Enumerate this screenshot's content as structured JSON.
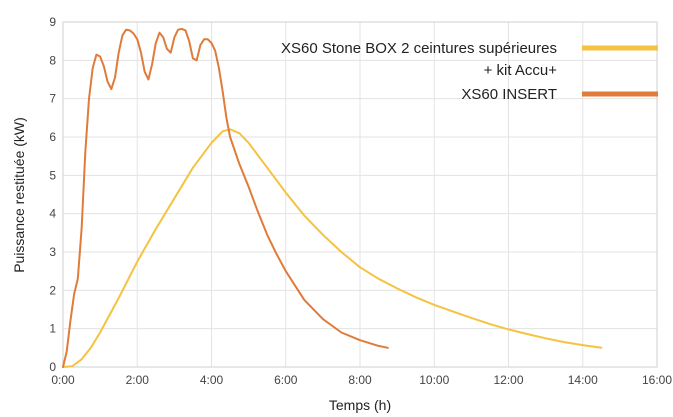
{
  "chart_data": {
    "type": "line",
    "title": "",
    "xlabel": "Temps (h)",
    "ylabel": "Puissance restituée  (kW)",
    "x_unit": "hours",
    "xlim": [
      0,
      16
    ],
    "ylim": [
      0,
      9
    ],
    "x_ticks": [
      {
        "value": 0,
        "label": "0:00"
      },
      {
        "value": 2,
        "label": "2:00"
      },
      {
        "value": 4,
        "label": "4:00"
      },
      {
        "value": 6,
        "label": "6:00"
      },
      {
        "value": 8,
        "label": "8:00"
      },
      {
        "value": 10,
        "label": "10:00"
      },
      {
        "value": 12,
        "label": "12:00"
      },
      {
        "value": 14,
        "label": "14:00"
      },
      {
        "value": 16,
        "label": "16:00"
      }
    ],
    "y_ticks": [
      {
        "value": 0,
        "label": "0"
      },
      {
        "value": 1,
        "label": "1"
      },
      {
        "value": 2,
        "label": "2"
      },
      {
        "value": 3,
        "label": "3"
      },
      {
        "value": 4,
        "label": "4"
      },
      {
        "value": 5,
        "label": "5"
      },
      {
        "value": 6,
        "label": "6"
      },
      {
        "value": 7,
        "label": "7"
      },
      {
        "value": 8,
        "label": "8"
      },
      {
        "value": 9,
        "label": "9"
      }
    ],
    "grid": true,
    "legend_position": "top-right",
    "series": [
      {
        "name": "XS60 Stone BOX 2 ceintures supérieures + kit Accu+",
        "legend_lines": [
          "XS60 Stone BOX 2 ceintures supérieures",
          "+ kit Accu+"
        ],
        "color": "#f5c242",
        "points": [
          [
            0,
            0
          ],
          [
            0.25,
            0.02
          ],
          [
            0.5,
            0.2
          ],
          [
            0.75,
            0.5
          ],
          [
            1.0,
            0.9
          ],
          [
            1.5,
            1.8
          ],
          [
            2.0,
            2.75
          ],
          [
            2.5,
            3.6
          ],
          [
            3.0,
            4.4
          ],
          [
            3.5,
            5.2
          ],
          [
            4.0,
            5.85
          ],
          [
            4.3,
            6.15
          ],
          [
            4.5,
            6.2
          ],
          [
            4.75,
            6.1
          ],
          [
            5.0,
            5.85
          ],
          [
            5.5,
            5.2
          ],
          [
            6.0,
            4.55
          ],
          [
            6.5,
            3.95
          ],
          [
            7.0,
            3.45
          ],
          [
            7.5,
            3.0
          ],
          [
            8.0,
            2.6
          ],
          [
            8.5,
            2.3
          ],
          [
            9.0,
            2.05
          ],
          [
            9.5,
            1.82
          ],
          [
            10.0,
            1.62
          ],
          [
            10.5,
            1.45
          ],
          [
            11.0,
            1.28
          ],
          [
            11.5,
            1.12
          ],
          [
            12.0,
            0.98
          ],
          [
            12.5,
            0.86
          ],
          [
            13.0,
            0.75
          ],
          [
            13.5,
            0.65
          ],
          [
            14.0,
            0.57
          ],
          [
            14.5,
            0.5
          ]
        ]
      },
      {
        "name": "XS60 INSERT",
        "legend_lines": [
          "XS60 INSERT"
        ],
        "color": "#e07b39",
        "points": [
          [
            0,
            0
          ],
          [
            0.1,
            0.4
          ],
          [
            0.2,
            1.2
          ],
          [
            0.3,
            1.9
          ],
          [
            0.4,
            2.3
          ],
          [
            0.5,
            3.6
          ],
          [
            0.6,
            5.6
          ],
          [
            0.7,
            7.0
          ],
          [
            0.8,
            7.8
          ],
          [
            0.9,
            8.15
          ],
          [
            1.0,
            8.1
          ],
          [
            1.1,
            7.85
          ],
          [
            1.2,
            7.45
          ],
          [
            1.3,
            7.25
          ],
          [
            1.4,
            7.55
          ],
          [
            1.5,
            8.2
          ],
          [
            1.6,
            8.65
          ],
          [
            1.7,
            8.8
          ],
          [
            1.8,
            8.78
          ],
          [
            1.9,
            8.7
          ],
          [
            2.0,
            8.55
          ],
          [
            2.1,
            8.2
          ],
          [
            2.2,
            7.7
          ],
          [
            2.3,
            7.5
          ],
          [
            2.4,
            7.9
          ],
          [
            2.5,
            8.45
          ],
          [
            2.6,
            8.72
          ],
          [
            2.7,
            8.6
          ],
          [
            2.8,
            8.3
          ],
          [
            2.9,
            8.2
          ],
          [
            3.0,
            8.6
          ],
          [
            3.1,
            8.8
          ],
          [
            3.2,
            8.82
          ],
          [
            3.3,
            8.78
          ],
          [
            3.4,
            8.5
          ],
          [
            3.5,
            8.05
          ],
          [
            3.6,
            8.0
          ],
          [
            3.7,
            8.4
          ],
          [
            3.8,
            8.55
          ],
          [
            3.9,
            8.55
          ],
          [
            4.0,
            8.45
          ],
          [
            4.1,
            8.25
          ],
          [
            4.2,
            7.8
          ],
          [
            4.3,
            7.2
          ],
          [
            4.4,
            6.5
          ],
          [
            4.5,
            6.0
          ],
          [
            4.75,
            5.3
          ],
          [
            5.0,
            4.7
          ],
          [
            5.25,
            4.05
          ],
          [
            5.5,
            3.45
          ],
          [
            5.75,
            2.95
          ],
          [
            6.0,
            2.5
          ],
          [
            6.5,
            1.75
          ],
          [
            7.0,
            1.25
          ],
          [
            7.5,
            0.9
          ],
          [
            8.0,
            0.7
          ],
          [
            8.5,
            0.55
          ],
          [
            8.75,
            0.5
          ]
        ]
      }
    ]
  }
}
